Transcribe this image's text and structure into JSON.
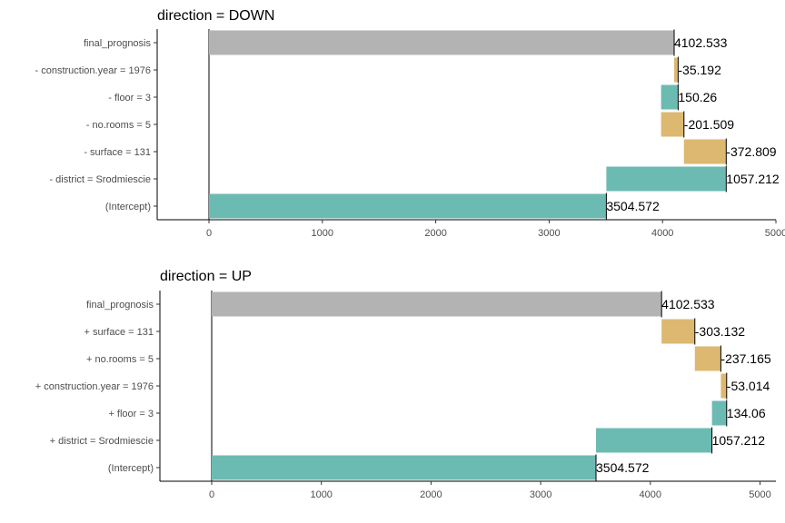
{
  "chart_data": [
    {
      "type": "bar",
      "title": "direction = DOWN",
      "xlim": [
        -450,
        5000
      ],
      "x_ticks": [
        0,
        1000,
        2000,
        3000,
        4000,
        5000
      ],
      "color_positive": "#6cbbb3",
      "color_negative": "#dcb870",
      "color_total": "#b3b3b3",
      "bars": [
        {
          "category": "final_prognosis",
          "start": 0,
          "end": 4102.533,
          "label": "4102.533",
          "kind": "total"
        },
        {
          "category": "- construction.year = 1976",
          "start": 4102.533,
          "end": 4137.725,
          "label": "-35.192",
          "kind": "negative"
        },
        {
          "category": "- floor = 3",
          "start": 3987.465,
          "end": 4137.725,
          "label": "150.26",
          "kind": "positive"
        },
        {
          "category": "- no.rooms = 5",
          "start": 3987.465,
          "end": 4188.974,
          "label": "-201.509",
          "kind": "negative"
        },
        {
          "category": "- surface = 131",
          "start": 4188.974,
          "end": 4561.783,
          "label": "-372.809",
          "kind": "negative"
        },
        {
          "category": "- district = Srodmiescie",
          "start": 3504.572,
          "end": 4561.783,
          "label": "1057.212",
          "kind": "positive"
        },
        {
          "category": "(Intercept)",
          "start": 0,
          "end": 3504.572,
          "label": "3504.572",
          "kind": "positive"
        }
      ]
    },
    {
      "type": "bar",
      "title": "direction = UP",
      "xlim": [
        -450,
        5000
      ],
      "x_ticks": [
        0,
        1000,
        2000,
        3000,
        4000,
        5000
      ],
      "color_positive": "#6cbbb3",
      "color_negative": "#dcb870",
      "color_total": "#b3b3b3",
      "bars": [
        {
          "category": "final_prognosis",
          "start": 0,
          "end": 4102.533,
          "label": "4102.533",
          "kind": "total"
        },
        {
          "category": "+ surface = 131",
          "start": 4102.533,
          "end": 4405.665,
          "label": "-303.132",
          "kind": "negative"
        },
        {
          "category": "+ no.rooms = 5",
          "start": 4405.665,
          "end": 4642.83,
          "label": "-237.165",
          "kind": "negative"
        },
        {
          "category": "+ construction.year = 1976",
          "start": 4642.83,
          "end": 4695.844,
          "label": "-53.014",
          "kind": "negative"
        },
        {
          "category": "+ floor = 3",
          "start": 4561.784,
          "end": 4695.844,
          "label": "134.06",
          "kind": "positive"
        },
        {
          "category": "+ district = Srodmiescie",
          "start": 3504.572,
          "end": 4561.784,
          "label": "1057.212",
          "kind": "positive"
        },
        {
          "category": "(Intercept)",
          "start": 0,
          "end": 3504.572,
          "label": "3504.572",
          "kind": "positive"
        }
      ]
    }
  ]
}
